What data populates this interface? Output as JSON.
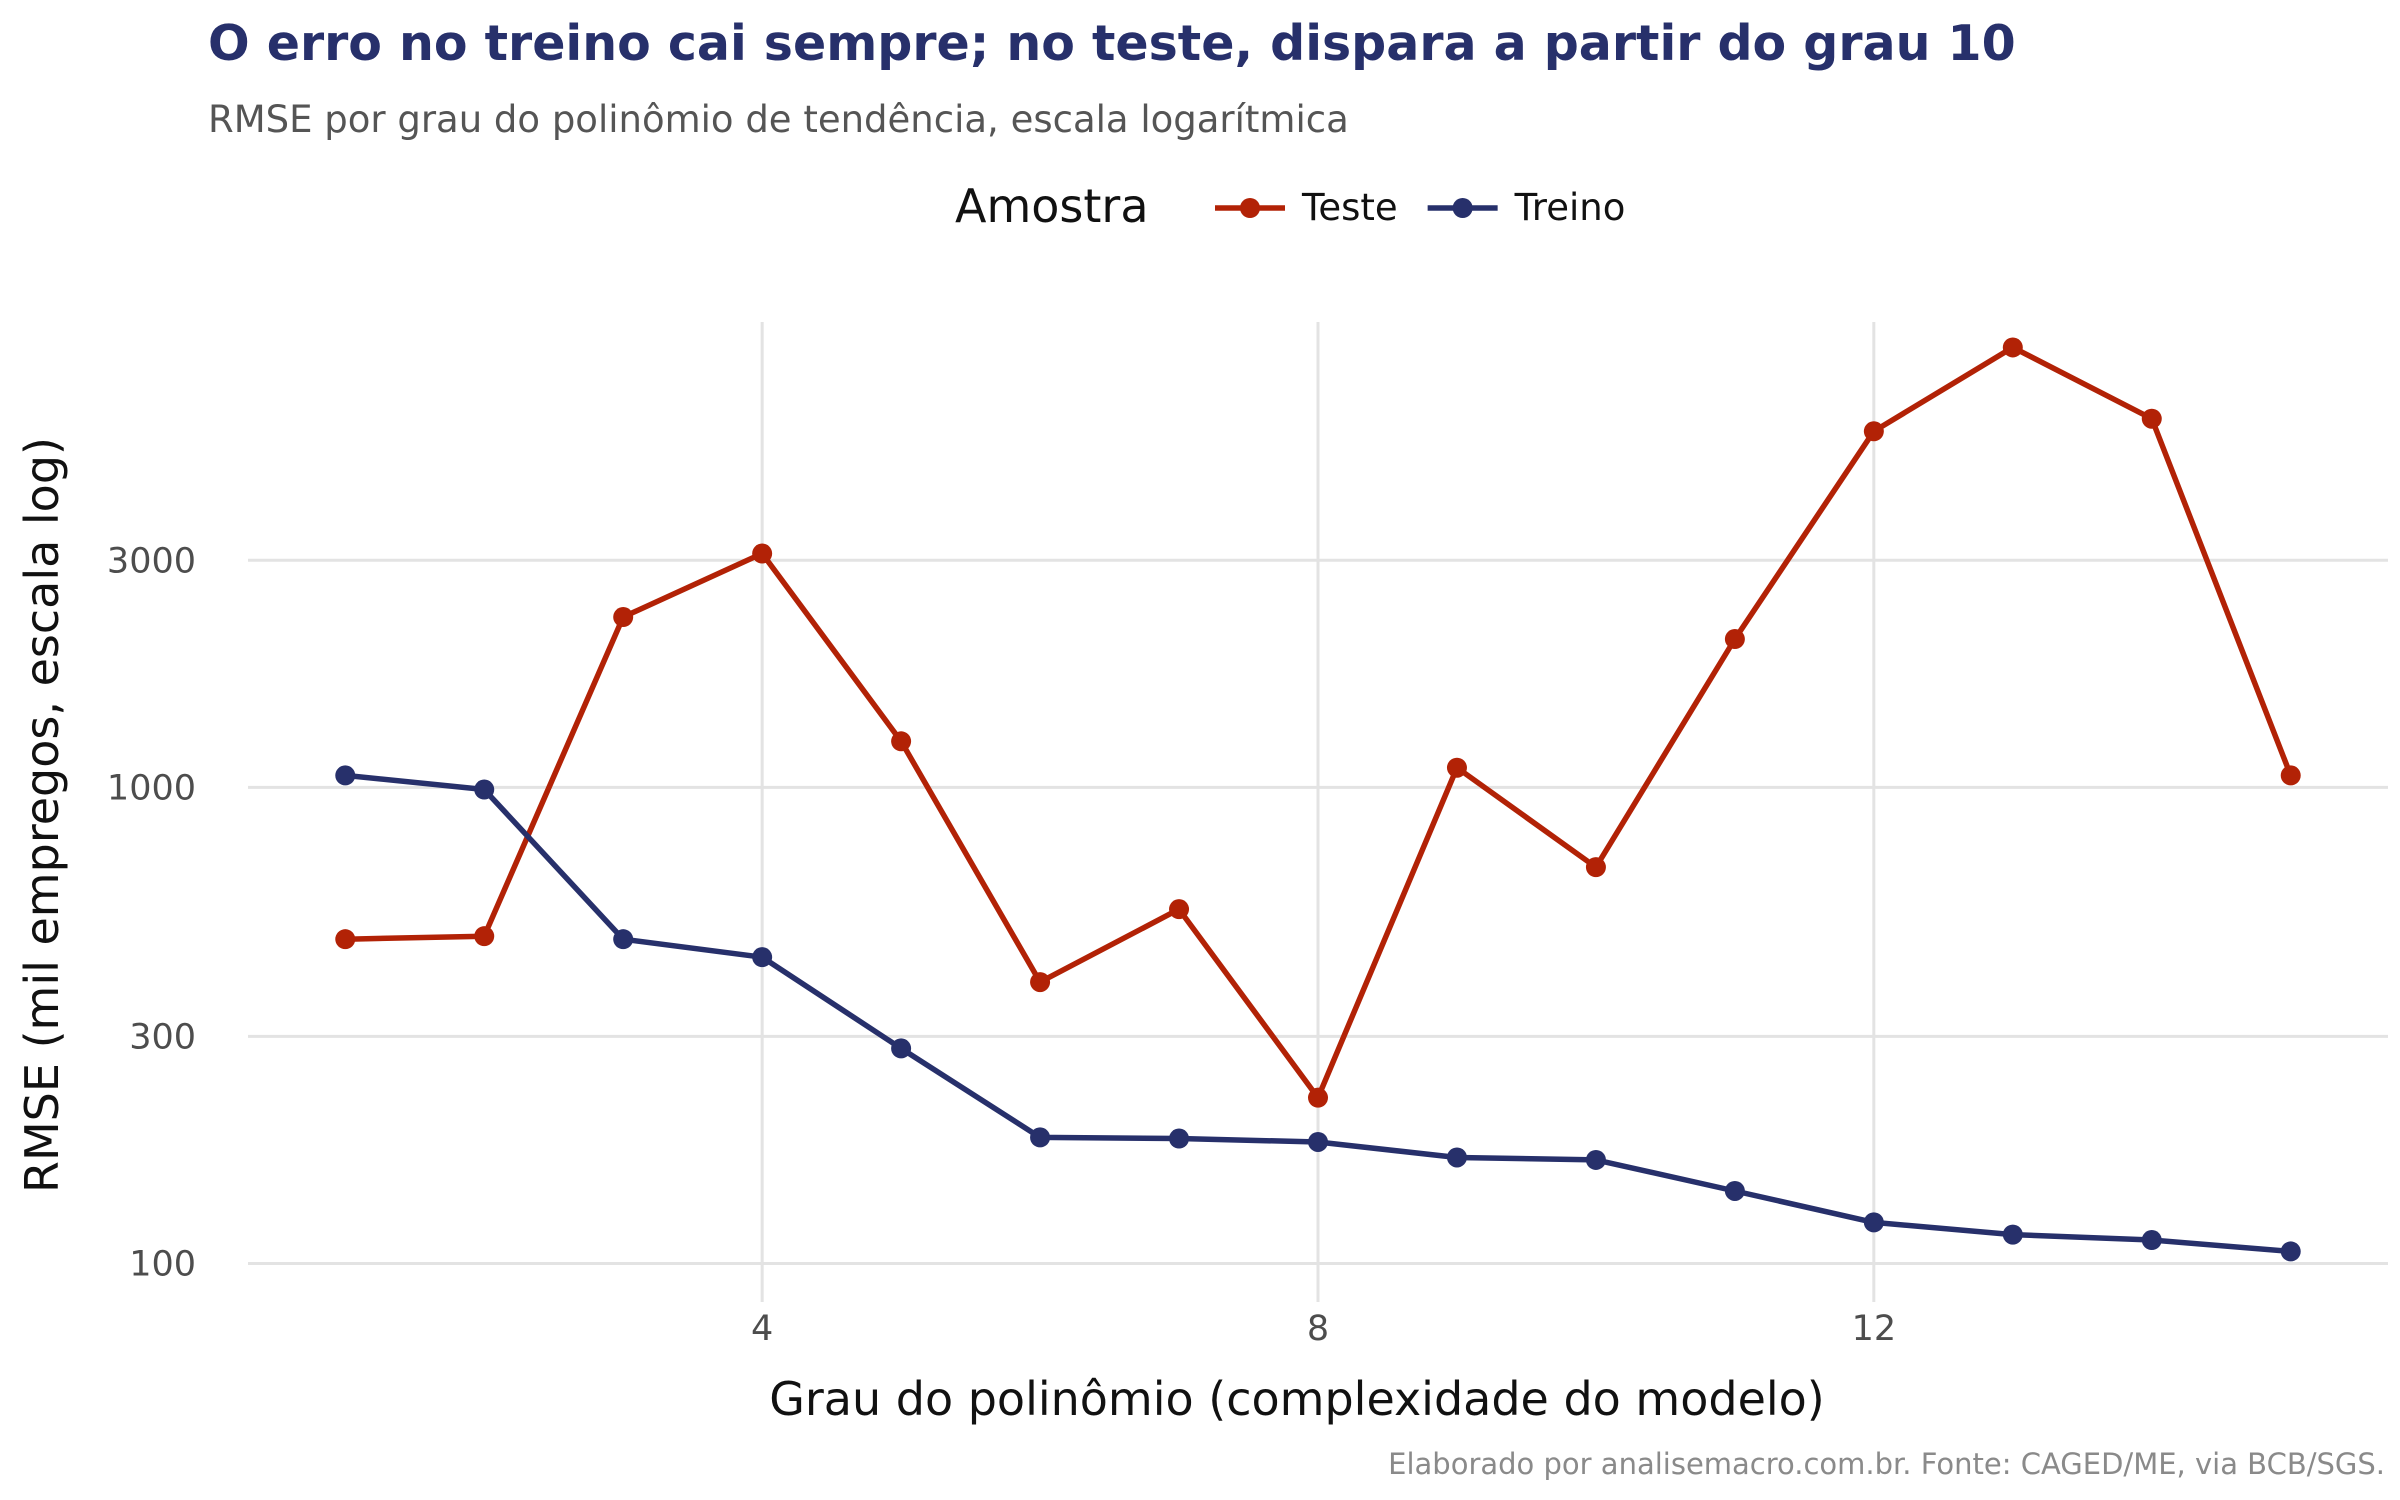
{
  "chart_data": {
    "type": "line",
    "title": "O erro no treino cai sempre; no teste, dispara a partir do grau 10",
    "subtitle": "RMSE por grau do polinômio de tendência, escala logarítmica",
    "xlabel": "Grau do polinômio (complexidade do modelo)",
    "ylabel": "RMSE (mil empregos, escala log)",
    "caption": "Elaborado por analisemacro.com.br. Fonte: CAGED/ME, via BCB/SGS.",
    "legend_title": "Amostra",
    "legend_position": "top",
    "y_scale": "log",
    "grid": true,
    "xlim": [
      0.3,
      15.7
    ],
    "ylim": [
      83,
      9500
    ],
    "x_ticks": [
      4,
      8,
      12
    ],
    "y_ticks": [
      100,
      300,
      1000,
      3000
    ],
    "x": [
      1,
      2,
      3,
      4,
      5,
      6,
      7,
      8,
      9,
      10,
      11,
      12,
      13,
      14,
      15
    ],
    "series": [
      {
        "name": "Teste",
        "color": "#B22206",
        "values": [
          480,
          487,
          2280,
          3100,
          1250,
          390,
          555,
          223,
          1100,
          680,
          2050,
          5600,
          8400,
          5950,
          1060
        ]
      },
      {
        "name": "Treino",
        "color": "#27306B",
        "values": [
          1060,
          990,
          480,
          440,
          283,
          184,
          183,
          180,
          167,
          165,
          142,
          122,
          115,
          112,
          106
        ]
      }
    ]
  }
}
